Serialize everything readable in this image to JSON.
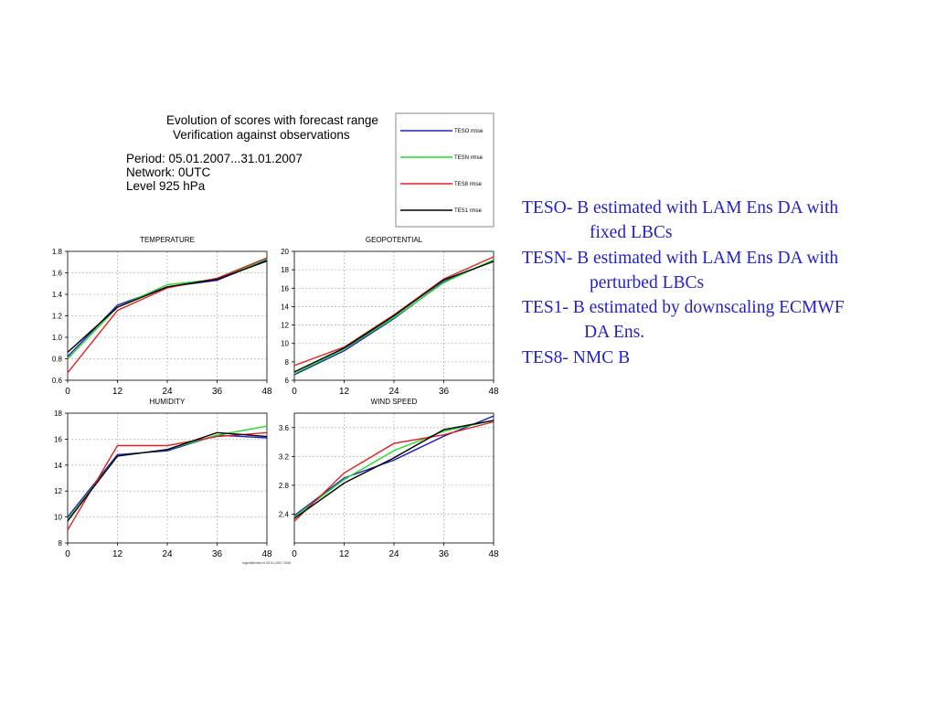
{
  "header": {
    "title_line1": "Evolution of scores with forecast range",
    "title_line2": "Verification against observations",
    "period": "Period: 05.01.2007...31.01.2007",
    "network": "Network: 0UTC",
    "level": "Level 925 hPa",
    "credit": "mgen@meteo.fr  02-01-2007 2008"
  },
  "colors": {
    "TESO": "#2020c8",
    "TESN": "#22dd22",
    "TES8": "#e02020",
    "TES1": "#000000",
    "side_text": "#2222c8",
    "grid": "#b8b8b8"
  },
  "legend": [
    {
      "key": "TESO",
      "label": "TESO rmse"
    },
    {
      "key": "TESN",
      "label": "TESN rmse"
    },
    {
      "key": "TES8",
      "label": "TES8 rmse"
    },
    {
      "key": "TES1",
      "label": "TES1 rmse"
    }
  ],
  "chart_data": [
    {
      "type": "line",
      "title": "TEMPERATURE",
      "x": [
        0,
        12,
        24,
        36,
        48
      ],
      "xticks": [
        0,
        12,
        24,
        36,
        48
      ],
      "ylim": [
        0.6,
        1.8
      ],
      "yticks": [
        "0.6",
        "0.8",
        "1.0",
        "1.2",
        "1.4",
        "1.6",
        "1.8"
      ],
      "grid": true,
      "series": [
        {
          "name": "TESO rmse",
          "key": "TESO",
          "values": [
            0.82,
            1.3,
            1.47,
            1.53,
            1.72
          ]
        },
        {
          "name": "TESN rmse",
          "key": "TESN",
          "values": [
            0.8,
            1.28,
            1.49,
            1.54,
            1.73
          ]
        },
        {
          "name": "TES8 rmse",
          "key": "TES8",
          "values": [
            0.67,
            1.25,
            1.46,
            1.55,
            1.74
          ]
        },
        {
          "name": "TES1 rmse",
          "key": "TES1",
          "values": [
            0.86,
            1.28,
            1.47,
            1.54,
            1.71
          ]
        }
      ]
    },
    {
      "type": "line",
      "title": "GEOPOTENTIAL",
      "x": [
        0,
        12,
        24,
        36,
        48
      ],
      "xticks": [
        0,
        12,
        24,
        36,
        48
      ],
      "ylim": [
        6,
        20
      ],
      "yticks": [
        "6",
        "8",
        "10",
        "12",
        "14",
        "16",
        "18",
        "20"
      ],
      "grid": true,
      "series": [
        {
          "name": "TESO rmse",
          "key": "TESO",
          "values": [
            6.6,
            9.2,
            12.7,
            16.7,
            19.0
          ]
        },
        {
          "name": "TESN rmse",
          "key": "TESN",
          "values": [
            6.7,
            9.4,
            12.8,
            16.6,
            19.1
          ]
        },
        {
          "name": "TES8 rmse",
          "key": "TES8",
          "values": [
            7.6,
            9.6,
            13.1,
            17.0,
            19.4
          ]
        },
        {
          "name": "TES1 rmse",
          "key": "TES1",
          "values": [
            6.9,
            9.5,
            13.0,
            16.9,
            18.9
          ]
        }
      ]
    },
    {
      "type": "line",
      "title": "HUMIDITY",
      "x": [
        0,
        12,
        24,
        36,
        48
      ],
      "xticks": [
        0,
        12,
        24,
        36,
        48
      ],
      "ylim": [
        8,
        18
      ],
      "yticks": [
        "8",
        "10",
        "12",
        "14",
        "16",
        "18"
      ],
      "grid": true,
      "series": [
        {
          "name": "TESO rmse",
          "key": "TESO",
          "values": [
            10.0,
            14.8,
            15.1,
            16.3,
            16.1
          ]
        },
        {
          "name": "TESN rmse",
          "key": "TESN",
          "values": [
            9.8,
            14.7,
            15.2,
            16.3,
            17.0
          ]
        },
        {
          "name": "TES8 rmse",
          "key": "TES8",
          "values": [
            9.0,
            15.5,
            15.5,
            16.2,
            16.5
          ]
        },
        {
          "name": "TES1 rmse",
          "key": "TES1",
          "values": [
            9.7,
            14.7,
            15.2,
            16.5,
            16.2
          ]
        }
      ]
    },
    {
      "type": "line",
      "title": "WIND SPEED",
      "x": [
        0,
        12,
        24,
        36,
        48
      ],
      "xticks": [
        0,
        12,
        24,
        36,
        48
      ],
      "ylim": [
        2.0,
        3.8
      ],
      "yticks": [
        "2.4",
        "2.8",
        "3.2",
        "3.6"
      ],
      "grid": true,
      "series": [
        {
          "name": "TESO rmse",
          "key": "TESO",
          "values": [
            2.38,
            2.9,
            3.15,
            3.48,
            3.76
          ]
        },
        {
          "name": "TESN rmse",
          "key": "TESN",
          "values": [
            2.36,
            2.88,
            3.28,
            3.55,
            3.7
          ]
        },
        {
          "name": "TES8 rmse",
          "key": "TES8",
          "values": [
            2.3,
            2.97,
            3.38,
            3.5,
            3.68
          ]
        },
        {
          "name": "TES1 rmse",
          "key": "TES1",
          "values": [
            2.34,
            2.83,
            3.18,
            3.57,
            3.7
          ]
        }
      ]
    }
  ],
  "side_text": {
    "line1": "TESO- B estimated with LAM Ens DA with",
    "line2": "fixed LBCs",
    "line3": "TESN- B estimated with LAM Ens DA with",
    "line4": "perturbed LBCs",
    "line5": "TES1-  B estimated by downscaling ECMWF",
    "line6": "DA Ens.",
    "line7": "TES8-   NMC B"
  }
}
